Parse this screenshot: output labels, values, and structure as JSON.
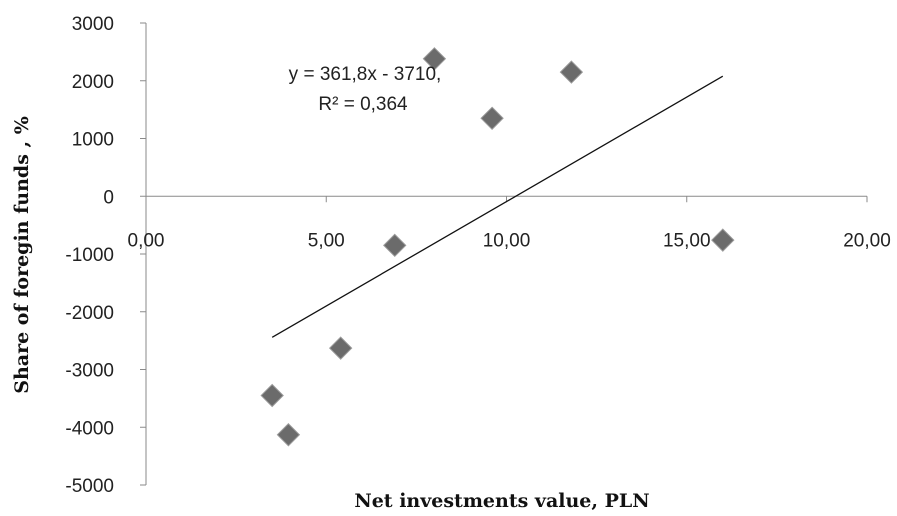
{
  "chart_data": {
    "type": "scatter",
    "xlabel": "Net investments value, PLN",
    "ylabel": "Share of foregin funds , %",
    "xlim": [
      0,
      20
    ],
    "ylim": [
      -5000,
      3000
    ],
    "x_ticks": [
      "0,00",
      "5,00",
      "10,00",
      "15,00",
      "20,00"
    ],
    "y_ticks": [
      "3000",
      "2000",
      "1000",
      "0",
      "-1000",
      "-2000",
      "-3000",
      "-4000",
      "-5000"
    ],
    "points": [
      {
        "x": 3.5,
        "y": -3450
      },
      {
        "x": 3.95,
        "y": -4130
      },
      {
        "x": 5.4,
        "y": -2630
      },
      {
        "x": 6.9,
        "y": -850
      },
      {
        "x": 8.0,
        "y": 2380
      },
      {
        "x": 9.6,
        "y": 1350
      },
      {
        "x": 11.8,
        "y": 2150
      },
      {
        "x": 16.0,
        "y": -760
      }
    ],
    "trendline": {
      "slope": 361.8,
      "intercept": -3710,
      "x_range": [
        3.5,
        16.0
      ],
      "equation": "y = 361,8x - 3710,",
      "r2": "R² = 0,364"
    },
    "marker_color": "#6b6b6b",
    "line_color": "#111111",
    "grid": false,
    "legend": "none"
  }
}
